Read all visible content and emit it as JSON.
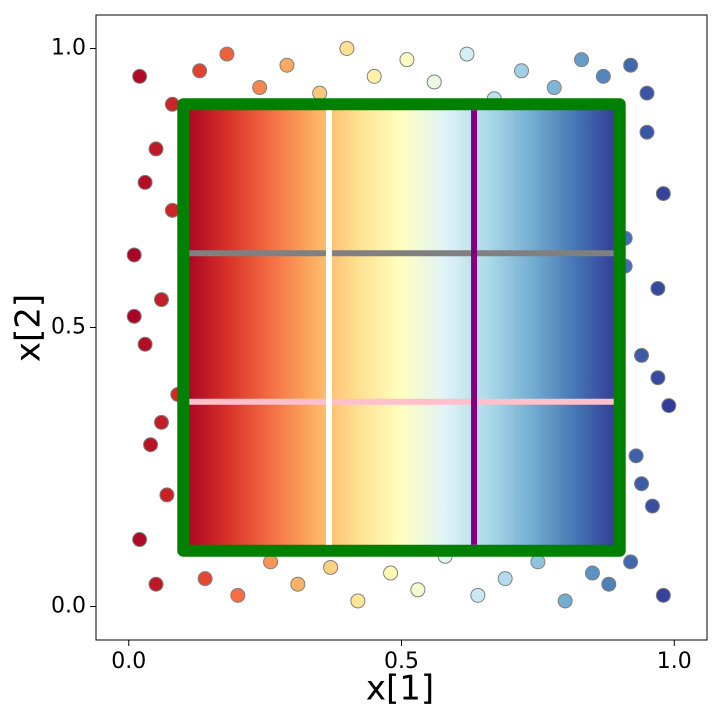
{
  "chart_data": {
    "type": "scatter",
    "xlabel": "x[1]",
    "ylabel": "x[2]",
    "xlim": [
      -0.06,
      1.06
    ],
    "ylim": [
      -0.06,
      1.06
    ],
    "xticks": [
      {
        "value": 0,
        "label": "0.0"
      },
      {
        "value": 0.5,
        "label": "0.5"
      },
      {
        "value": 1,
        "label": "1.0"
      }
    ],
    "yticks": [
      {
        "value": 0,
        "label": "0.0"
      },
      {
        "value": 0.5,
        "label": "0.5"
      },
      {
        "value": 1,
        "label": "1.0"
      }
    ],
    "colormap": [
      "#a50026",
      "#d73027",
      "#f46d43",
      "#fdae61",
      "#fee090",
      "#ffffbf",
      "#e0f3f8",
      "#abd9e9",
      "#74add1",
      "#4575b4",
      "#313695"
    ],
    "points": {
      "x": [
        0.02,
        0.05,
        0.08,
        0.01,
        0.06,
        0.03,
        0.09,
        0.04,
        0.07,
        0.02,
        0.05,
        0.08,
        0.03,
        0.06,
        0.01,
        0.92,
        0.95,
        0.98,
        0.91,
        0.97,
        0.94,
        0.99,
        0.93,
        0.96,
        0.92,
        0.98,
        0.95,
        0.91,
        0.97,
        0.94,
        0.14,
        0.2,
        0.26,
        0.31,
        0.37,
        0.42,
        0.48,
        0.53,
        0.58,
        0.64,
        0.69,
        0.75,
        0.8,
        0.85,
        0.88,
        0.13,
        0.18,
        0.24,
        0.29,
        0.35,
        0.4,
        0.45,
        0.51,
        0.56,
        0.62,
        0.67,
        0.72,
        0.78,
        0.83,
        0.87
      ],
      "y": [
        0.95,
        0.82,
        0.71,
        0.63,
        0.55,
        0.47,
        0.38,
        0.29,
        0.2,
        0.12,
        0.04,
        0.9,
        0.76,
        0.33,
        0.52,
        0.97,
        0.85,
        0.74,
        0.66,
        0.57,
        0.45,
        0.36,
        0.27,
        0.18,
        0.08,
        0.02,
        0.92,
        0.61,
        0.41,
        0.22,
        0.05,
        0.02,
        0.08,
        0.04,
        0.07,
        0.01,
        0.06,
        0.03,
        0.09,
        0.02,
        0.05,
        0.08,
        0.01,
        0.06,
        0.04,
        0.96,
        0.99,
        0.93,
        0.97,
        0.92,
        1.0,
        0.95,
        0.98,
        0.94,
        0.99,
        0.91,
        0.96,
        0.93,
        0.98,
        0.95
      ]
    },
    "region": {
      "x": [
        0.1,
        0.9
      ],
      "y": [
        0.1,
        0.9
      ],
      "color": "#008000"
    },
    "vlines": [
      {
        "x": 0.367,
        "color": "#ffffff"
      },
      {
        "x": 0.633,
        "color": "#800080"
      }
    ],
    "hlines": [
      {
        "y": 0.633,
        "color": "#808080"
      },
      {
        "y": 0.367,
        "color": "#ffc0cb"
      }
    ]
  }
}
